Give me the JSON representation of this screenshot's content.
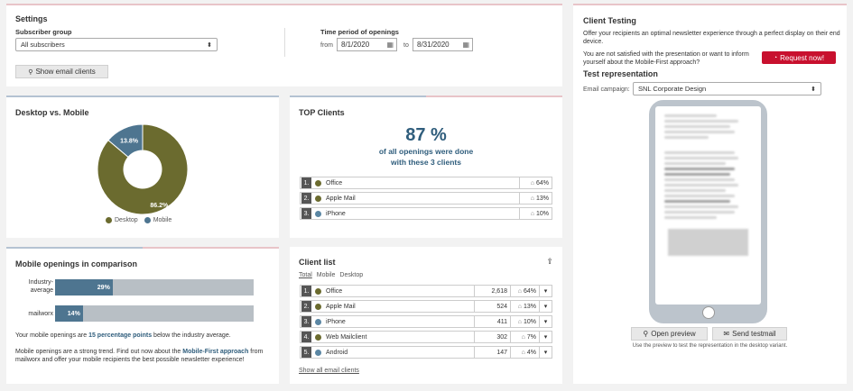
{
  "settings": {
    "title": "Settings",
    "subscriber_group_label": "Subscriber group",
    "subscriber_group_value": "All subscribers",
    "time_period_label": "Time period of openings",
    "from_label": "from",
    "from_date": "8/1/2020",
    "to_label": "to",
    "to_date": "8/31/2020",
    "show_clients_button": "Show email clients"
  },
  "desktop_mobile": {
    "title": "Desktop vs. Mobile",
    "legend_desktop": "Desktop",
    "legend_mobile": "Mobile",
    "chart_data": {
      "type": "pie",
      "categories": [
        "Desktop",
        "Mobile"
      ],
      "values": [
        86.2,
        13.8
      ],
      "labels": [
        "86.2%",
        "13.8%"
      ],
      "colors": [
        "#6b6b2f",
        "#4e7590"
      ]
    }
  },
  "top_clients": {
    "title": "TOP Clients",
    "percent": "87 %",
    "line1": "of all openings were done",
    "line2": "with these 3 clients",
    "rows": [
      {
        "num": "1.",
        "name": "Office",
        "pct": "64%",
        "color": "#6b6b2f"
      },
      {
        "num": "2.",
        "name": "Apple Mail",
        "pct": "13%",
        "color": "#6b6b2f"
      },
      {
        "num": "3.",
        "name": "iPhone",
        "pct": "10%",
        "color": "#5a86a3"
      }
    ]
  },
  "mobile_compare": {
    "title": "Mobile openings in comparison",
    "industry_label_1": "Industry-",
    "industry_label_2": "average",
    "mailworx_label": "mailworx",
    "text_pre": "Your mobile openings are ",
    "text_highlight": "15 percentage points",
    "text_post": " below the industry average.",
    "trend_pre": "Mobile openings are a strong trend. Find out now about the ",
    "trend_link": "Mobile-First approach",
    "trend_post": " from mailworx and offer your mobile recipients the best possible newsletter experience!",
    "chart_data": {
      "type": "bar",
      "categories": [
        "Industry-average",
        "mailworx"
      ],
      "values": [
        29,
        14
      ],
      "labels": [
        "29%",
        "14%"
      ],
      "xlim": [
        0,
        100
      ]
    }
  },
  "client_list": {
    "title": "Client list",
    "tab_total": "Total",
    "tab_mobile": "Mobile",
    "tab_desktop": "Desktop",
    "show_all": "Show all email clients",
    "rows": [
      {
        "num": "1.",
        "name": "Office",
        "count": "2,618",
        "pct": "64%",
        "color": "#6b6b2f"
      },
      {
        "num": "2.",
        "name": "Apple Mail",
        "count": "524",
        "pct": "13%",
        "color": "#6b6b2f"
      },
      {
        "num": "3.",
        "name": "iPhone",
        "count": "411",
        "pct": "10%",
        "color": "#5a86a3"
      },
      {
        "num": "4.",
        "name": "Web Mailclient",
        "count": "302",
        "pct": "7%",
        "color": "#6b6b2f"
      },
      {
        "num": "5.",
        "name": "Android",
        "count": "147",
        "pct": "4%",
        "color": "#5a86a3"
      }
    ]
  },
  "client_testing": {
    "title": "Client Testing",
    "desc": "Offer your recipients an optimal newsletter experience through a perfect display on their end device.",
    "question": "You are not satisfied with the presentation or want to inform yourself about the Mobile-First approach?",
    "request_button": "Request now!",
    "test_rep_title": "Test representation",
    "campaign_label": "Email campaign:",
    "campaign_value": "SNL Corporate Design",
    "open_preview": "Open preview",
    "send_testmail": "Send testmail",
    "hint": "Use the preview to test the representation in the desktop variant."
  }
}
